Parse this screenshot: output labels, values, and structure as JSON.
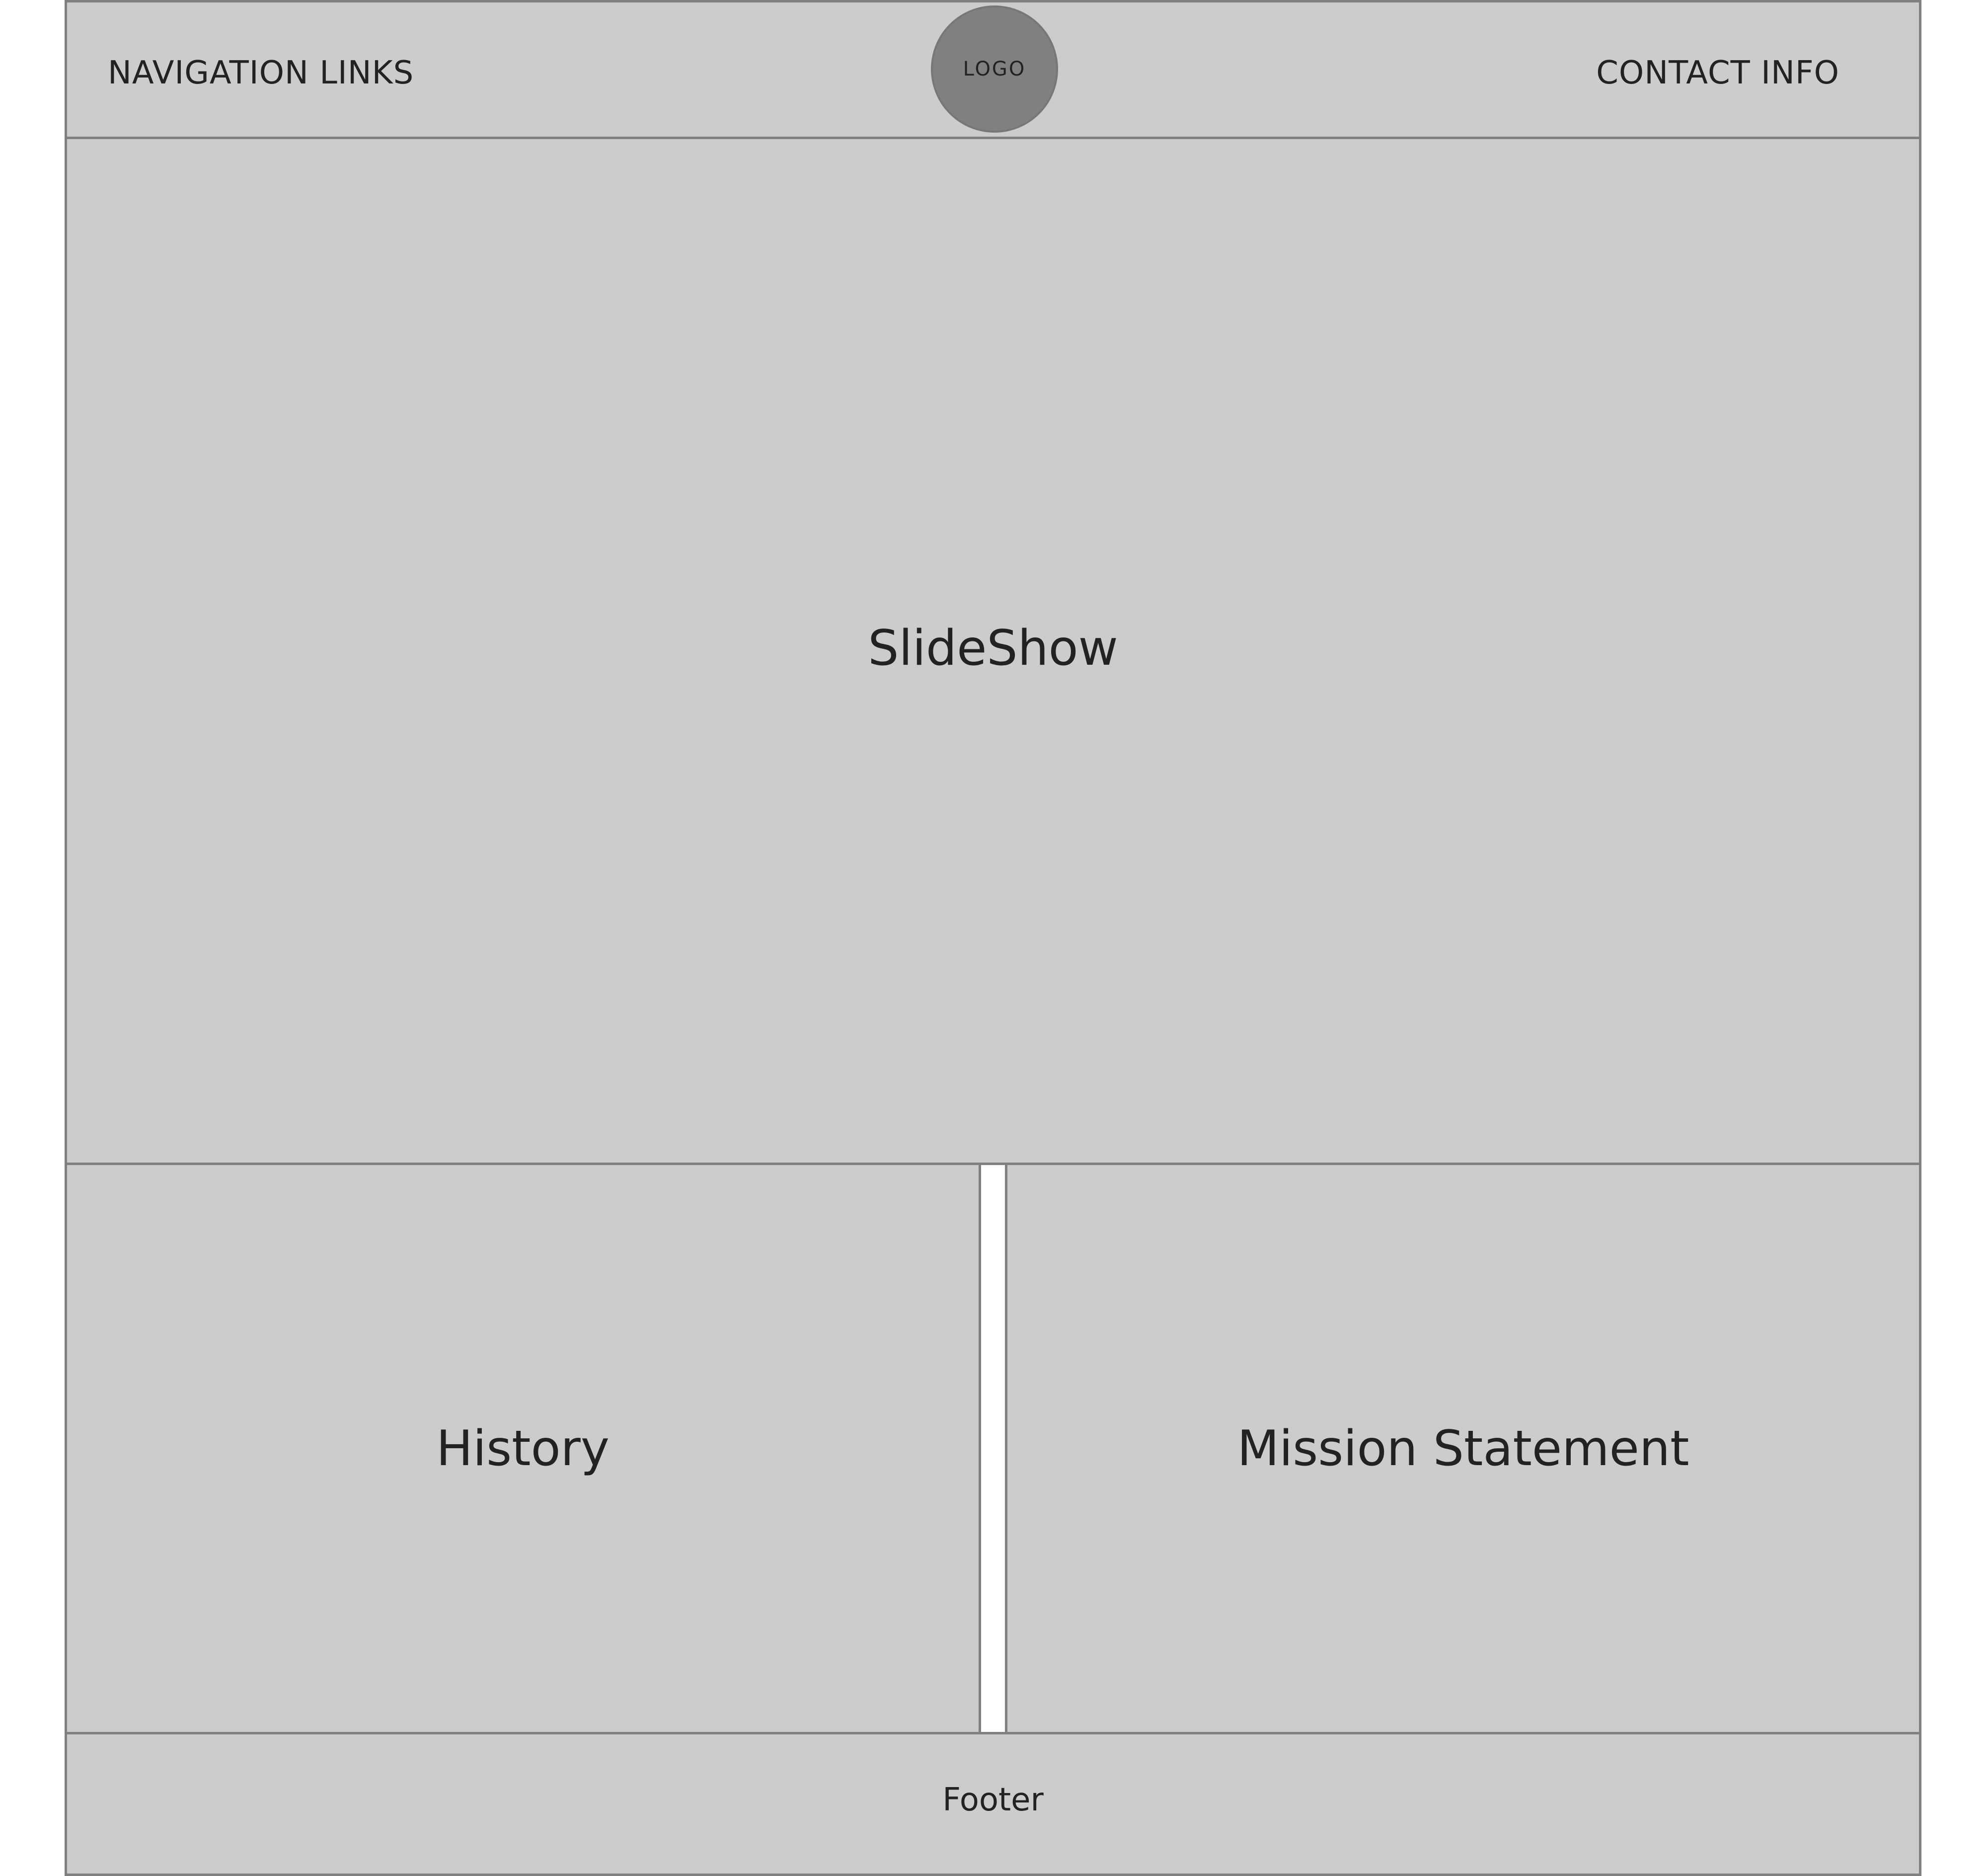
{
  "header": {
    "nav_label": "NAVIGATION LINKS",
    "logo_label": "LOGO",
    "contact_label": "CONTACT INFO"
  },
  "main": {
    "slideshow_label": "SlideShow",
    "history_label": "History",
    "mission_label": "Mission Statement"
  },
  "footer": {
    "label": "Footer"
  },
  "colors": {
    "panel_fill": "#cccccc",
    "panel_border": "#808080",
    "logo_fill": "#808080",
    "text": "#222222"
  }
}
